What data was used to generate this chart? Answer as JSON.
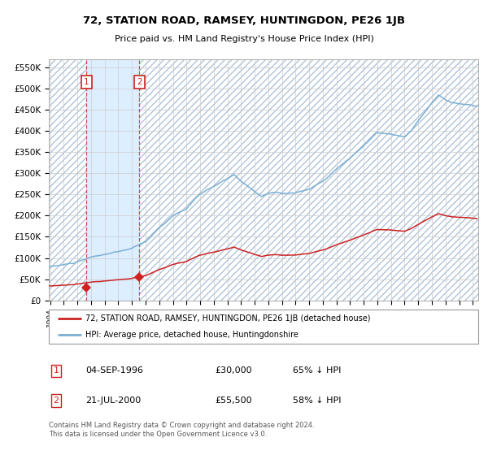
{
  "title": "72, STATION ROAD, RAMSEY, HUNTINGDON, PE26 1JB",
  "subtitle": "Price paid vs. HM Land Registry's House Price Index (HPI)",
  "legend_line1": "72, STATION ROAD, RAMSEY, HUNTINGDON, PE26 1JB (detached house)",
  "legend_line2": "HPI: Average price, detached house, Huntingdonshire",
  "footnote": "Contains HM Land Registry data © Crown copyright and database right 2024.\nThis data is licensed under the Open Government Licence v3.0.",
  "sale1_date": "04-SEP-1996",
  "sale1_price": 30000,
  "sale1_label": "1",
  "sale1_pct": "65% ↓ HPI",
  "sale2_date": "21-JUL-2000",
  "sale2_price": 55500,
  "sale2_label": "2",
  "sale2_pct": "58% ↓ HPI",
  "ylabel_ticks": [
    "£0",
    "£50K",
    "£100K",
    "£150K",
    "£200K",
    "£250K",
    "£300K",
    "£350K",
    "£400K",
    "£450K",
    "£500K",
    "£550K"
  ],
  "ytick_values": [
    0,
    50000,
    100000,
    150000,
    200000,
    250000,
    300000,
    350000,
    400000,
    450000,
    500000,
    550000
  ],
  "ylim": [
    0,
    570000
  ],
  "hpi_color": "#7ab0d4",
  "price_color": "#cc2222",
  "marker_color": "#cc2222",
  "bg_color": "#ffffff",
  "grid_color": "#cccccc",
  "shade_color": "#ddeeff",
  "hatch_color": "#c8d8e8",
  "sale1_x": 1996.67,
  "sale2_x": 2000.54,
  "xmin": 1993.9,
  "xmax": 2025.4
}
